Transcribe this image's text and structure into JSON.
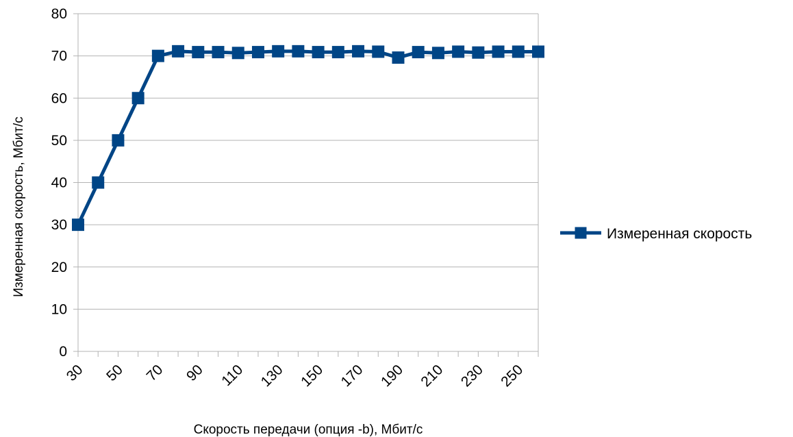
{
  "chart_data": {
    "type": "line",
    "title": "",
    "xlabel": "Скорость передачи (опция -b), Мбит/с",
    "ylabel": "Измеренная скорость, Мбит/с",
    "ylim": [
      0,
      80
    ],
    "y_ticks": [
      0,
      10,
      20,
      30,
      40,
      50,
      60,
      70,
      80
    ],
    "x": [
      30,
      40,
      50,
      60,
      70,
      80,
      90,
      100,
      110,
      120,
      130,
      140,
      150,
      160,
      170,
      180,
      190,
      200,
      210,
      220,
      230,
      240,
      250,
      260
    ],
    "x_tick_labels": [
      "30",
      "50",
      "70",
      "90",
      "110",
      "130",
      "150",
      "170",
      "190",
      "210",
      "230",
      "250"
    ],
    "grid": true,
    "legend_position": "right",
    "series": [
      {
        "name": "Измеренная скорость",
        "color": "#004586",
        "marker": "square",
        "values": [
          30,
          40,
          50,
          60,
          70,
          71.1,
          70.9,
          70.9,
          70.7,
          70.9,
          71.1,
          71.1,
          70.9,
          70.9,
          71.1,
          71.0,
          69.6,
          70.9,
          70.7,
          71.0,
          70.8,
          71.0,
          71.0,
          71.0
        ]
      }
    ]
  }
}
